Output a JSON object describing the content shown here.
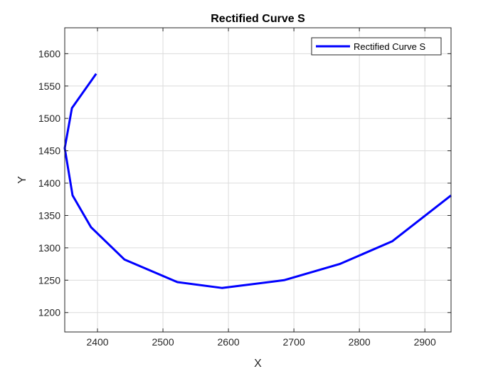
{
  "chart_data": {
    "type": "line",
    "title": "Rectified Curve S",
    "xlabel": "X",
    "ylabel": "Y",
    "xlim": [
      2350,
      2940
    ],
    "ylim": [
      1170,
      1640
    ],
    "xticks": [
      2400,
      2500,
      2600,
      2700,
      2800,
      2900
    ],
    "yticks": [
      1200,
      1250,
      1300,
      1350,
      1400,
      1450,
      1500,
      1550,
      1600
    ],
    "grid": true,
    "legend_position": "top-right",
    "series": [
      {
        "name": "Rectified Curve S",
        "color": "#0000ff",
        "x": [
          2398,
          2361,
          2350,
          2362,
          2390,
          2441,
          2522,
          2590,
          2685,
          2770,
          2850,
          2940
        ],
        "y": [
          1569,
          1516,
          1454,
          1381,
          1332,
          1282,
          1247,
          1238,
          1250,
          1275,
          1310,
          1381
        ]
      }
    ]
  }
}
